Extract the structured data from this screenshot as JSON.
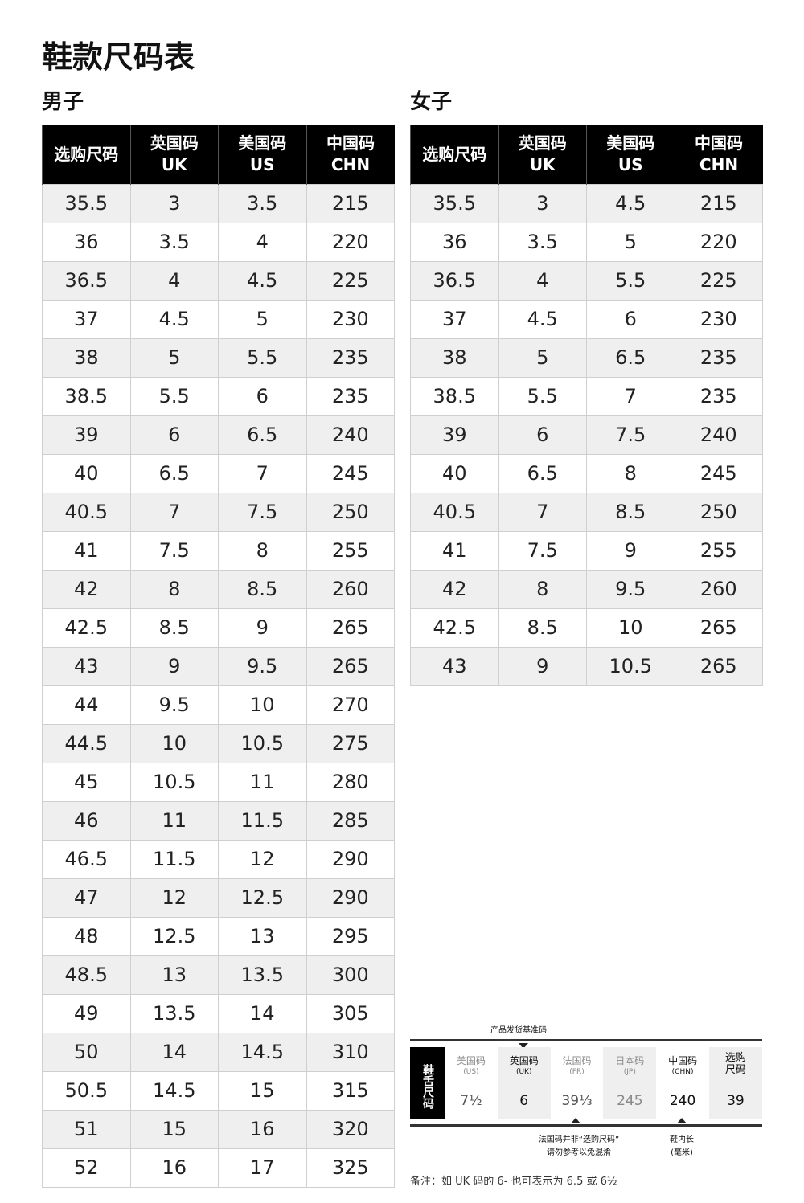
{
  "title": "鞋款尺码表",
  "men": {
    "label": "男子",
    "headers": [
      "选购尺码",
      "英国码\nUK",
      "美国码\nUS",
      "中国码\nCHN"
    ],
    "rows": [
      [
        "35.5",
        "3",
        "3.5",
        "215"
      ],
      [
        "36",
        "3.5",
        "4",
        "220"
      ],
      [
        "36.5",
        "4",
        "4.5",
        "225"
      ],
      [
        "37",
        "4.5",
        "5",
        "230"
      ],
      [
        "38",
        "5",
        "5.5",
        "235"
      ],
      [
        "38.5",
        "5.5",
        "6",
        "235"
      ],
      [
        "39",
        "6",
        "6.5",
        "240"
      ],
      [
        "40",
        "6.5",
        "7",
        "245"
      ],
      [
        "40.5",
        "7",
        "7.5",
        "250"
      ],
      [
        "41",
        "7.5",
        "8",
        "255"
      ],
      [
        "42",
        "8",
        "8.5",
        "260"
      ],
      [
        "42.5",
        "8.5",
        "9",
        "265"
      ],
      [
        "43",
        "9",
        "9.5",
        "265"
      ],
      [
        "44",
        "9.5",
        "10",
        "270"
      ],
      [
        "44.5",
        "10",
        "10.5",
        "275"
      ],
      [
        "45",
        "10.5",
        "11",
        "280"
      ],
      [
        "46",
        "11",
        "11.5",
        "285"
      ],
      [
        "46.5",
        "11.5",
        "12",
        "290"
      ],
      [
        "47",
        "12",
        "12.5",
        "290"
      ],
      [
        "48",
        "12.5",
        "13",
        "295"
      ],
      [
        "48.5",
        "13",
        "13.5",
        "300"
      ],
      [
        "49",
        "13.5",
        "14",
        "305"
      ],
      [
        "50",
        "14",
        "14.5",
        "310"
      ],
      [
        "50.5",
        "14.5",
        "15",
        "315"
      ],
      [
        "51",
        "15",
        "16",
        "320"
      ],
      [
        "52",
        "16",
        "17",
        "325"
      ]
    ]
  },
  "women": {
    "label": "女子",
    "headers": [
      "选购尺码",
      "英国码\nUK",
      "美国码\nUS",
      "中国码\nCHN"
    ],
    "rows": [
      [
        "35.5",
        "3",
        "4.5",
        "215"
      ],
      [
        "36",
        "3.5",
        "5",
        "220"
      ],
      [
        "36.5",
        "4",
        "5.5",
        "225"
      ],
      [
        "37",
        "4.5",
        "6",
        "230"
      ],
      [
        "38",
        "5",
        "6.5",
        "235"
      ],
      [
        "38.5",
        "5.5",
        "7",
        "235"
      ],
      [
        "39",
        "6",
        "7.5",
        "240"
      ],
      [
        "40",
        "6.5",
        "8",
        "245"
      ],
      [
        "40.5",
        "7",
        "8.5",
        "250"
      ],
      [
        "41",
        "7.5",
        "9",
        "255"
      ],
      [
        "42",
        "8",
        "9.5",
        "260"
      ],
      [
        "42.5",
        "8.5",
        "10",
        "265"
      ],
      [
        "43",
        "9",
        "10.5",
        "265"
      ]
    ]
  },
  "label": {
    "top_note": "产品发货基准码",
    "side": "鞋舌尺码",
    "cells": [
      {
        "h": "美国码",
        "s": "(US)",
        "v": "7½"
      },
      {
        "h": "英国码",
        "s": "(UK)",
        "v": "6"
      },
      {
        "h": "法国码",
        "s": "(FR)",
        "v": "39⅓"
      },
      {
        "h": "日本码",
        "s": "(JP)",
        "v": "245"
      },
      {
        "h": "中国码",
        "s": "(CHN)",
        "v": "240"
      },
      {
        "h": "选购\n尺码",
        "s": "",
        "v": "39"
      }
    ],
    "fr_note": "法国码并非“选购尺码”\n请勿参考以免混淆",
    "chn_note": "鞋内长\n(毫米)"
  },
  "remark": "备注：如 UK 码的 6- 也可表示为 6.5 或 6½"
}
